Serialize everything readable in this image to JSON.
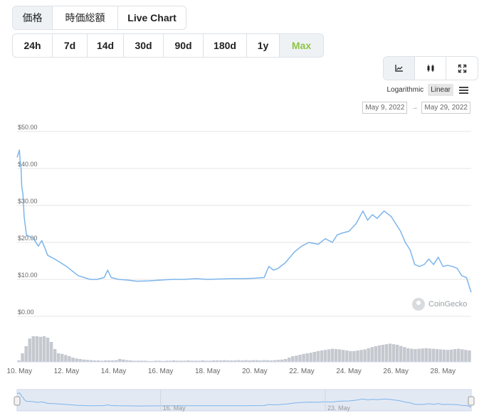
{
  "tabs": {
    "items": [
      "価格",
      "時価総額",
      "Live Chart"
    ],
    "active_index": 0
  },
  "ranges": {
    "items": [
      "24h",
      "7d",
      "14d",
      "30d",
      "90d",
      "180d",
      "1y",
      "Max"
    ],
    "active_index": 7,
    "active_color": "#8dc647"
  },
  "chart_types": {
    "icons": [
      "line-chart-icon",
      "candlestick-icon",
      "fullscreen-icon"
    ],
    "active_index": 0
  },
  "scale": {
    "logarithmic_label": "Logarithmic",
    "linear_label": "Linear",
    "active": "Linear"
  },
  "date_range": {
    "from": "May 9, 2022",
    "to": "May 29, 2022"
  },
  "watermark": "CoinGecko",
  "chart_data": {
    "type": "line",
    "title": "",
    "xlabel": "",
    "ylabel": "",
    "color": "#7cb5ec",
    "y_ticks": [
      "$50.00",
      "$40.00",
      "$30.00",
      "$20.00",
      "$10.00",
      "$0.00"
    ],
    "ylim": [
      0,
      50
    ],
    "x_ticks": [
      "10. May",
      "12. May",
      "14. May",
      "16. May",
      "18. May",
      "20. May",
      "22. May",
      "24. May",
      "26. May",
      "28. May"
    ],
    "x_tick_days": [
      10,
      12,
      14,
      16,
      18,
      20,
      22,
      24,
      26,
      28
    ],
    "xlim_days": [
      9.9,
      29.2
    ],
    "series": [
      {
        "x_days": [
          9.9,
          9.95,
          10.0,
          10.03,
          10.07,
          10.1,
          10.15,
          10.2,
          10.3,
          10.45,
          10.6,
          10.8,
          10.95,
          11.05,
          11.2,
          11.5,
          12.0,
          12.5,
          13.0,
          13.3,
          13.6,
          13.75,
          13.9,
          14.2,
          14.6,
          15.0,
          15.5,
          16.0,
          16.5,
          17.0,
          17.5,
          18.0,
          18.5,
          19.0,
          19.5,
          20.0,
          20.4,
          20.6,
          20.8,
          21.0,
          21.3,
          21.5,
          21.7,
          22.0,
          22.3,
          22.7,
          23.0,
          23.3,
          23.5,
          23.7,
          24.0,
          24.3,
          24.6,
          24.8,
          25.0,
          25.2,
          25.5,
          25.8,
          26.0,
          26.2,
          26.4,
          26.6,
          26.8,
          27.0,
          27.2,
          27.4,
          27.6,
          27.8,
          28.0,
          28.2,
          28.4,
          28.6,
          28.8,
          29.0,
          29.1,
          29.15,
          29.2
        ],
        "values": [
          43,
          44,
          45,
          42,
          40,
          35,
          33,
          27,
          22,
          21.5,
          21,
          19,
          20.5,
          19,
          16.5,
          15.5,
          13.5,
          11,
          10,
          10,
          10.5,
          12.5,
          10.5,
          10,
          9.8,
          9.5,
          9.6,
          9.8,
          10,
          10,
          10.2,
          10,
          10.1,
          10.2,
          10.2,
          10.3,
          10.5,
          13.5,
          12.5,
          13,
          14.5,
          16,
          17.5,
          19,
          20,
          19.5,
          21,
          20,
          22,
          22.5,
          23,
          25,
          28.5,
          26,
          27.5,
          26.5,
          28.5,
          27,
          25,
          23,
          20,
          18,
          14,
          13.5,
          14,
          15.5,
          14,
          16,
          13.5,
          13.8,
          13.5,
          13,
          11,
          10.5,
          8.5,
          7.5,
          6.5
        ]
      }
    ],
    "volume_bars": {
      "values": [
        0.05,
        0.3,
        0.55,
        0.82,
        0.9,
        0.9,
        0.88,
        0.9,
        0.85,
        0.7,
        0.45,
        0.3,
        0.28,
        0.24,
        0.2,
        0.15,
        0.12,
        0.1,
        0.08,
        0.07,
        0.06,
        0.05,
        0.05,
        0.04,
        0.05,
        0.05,
        0.05,
        0.06,
        0.1,
        0.08,
        0.06,
        0.05,
        0.04,
        0.04,
        0.04,
        0.04,
        0.03,
        0.03,
        0.04,
        0.04,
        0.03,
        0.04,
        0.04,
        0.05,
        0.04,
        0.04,
        0.04,
        0.05,
        0.04,
        0.04,
        0.04,
        0.05,
        0.04,
        0.04,
        0.05,
        0.05,
        0.05,
        0.06,
        0.05,
        0.05,
        0.05,
        0.06,
        0.05,
        0.06,
        0.05,
        0.06,
        0.06,
        0.05,
        0.06,
        0.06,
        0.05,
        0.06,
        0.07,
        0.08,
        0.1,
        0.15,
        0.2,
        0.22,
        0.25,
        0.28,
        0.3,
        0.32,
        0.35,
        0.38,
        0.4,
        0.42,
        0.44,
        0.46,
        0.45,
        0.44,
        0.42,
        0.4,
        0.38,
        0.38,
        0.4,
        0.42,
        0.44,
        0.48,
        0.52,
        0.55,
        0.58,
        0.6,
        0.62,
        0.64,
        0.62,
        0.6,
        0.56,
        0.52,
        0.48,
        0.46,
        0.45,
        0.46,
        0.47,
        0.48,
        0.47,
        0.46,
        0.45,
        0.44,
        0.43,
        0.42,
        0.43,
        0.45,
        0.46,
        0.44,
        0.42,
        0.4
      ]
    },
    "navigator": {
      "labels": [
        "16. May",
        "23. May"
      ],
      "label_days": [
        16,
        23
      ]
    }
  }
}
